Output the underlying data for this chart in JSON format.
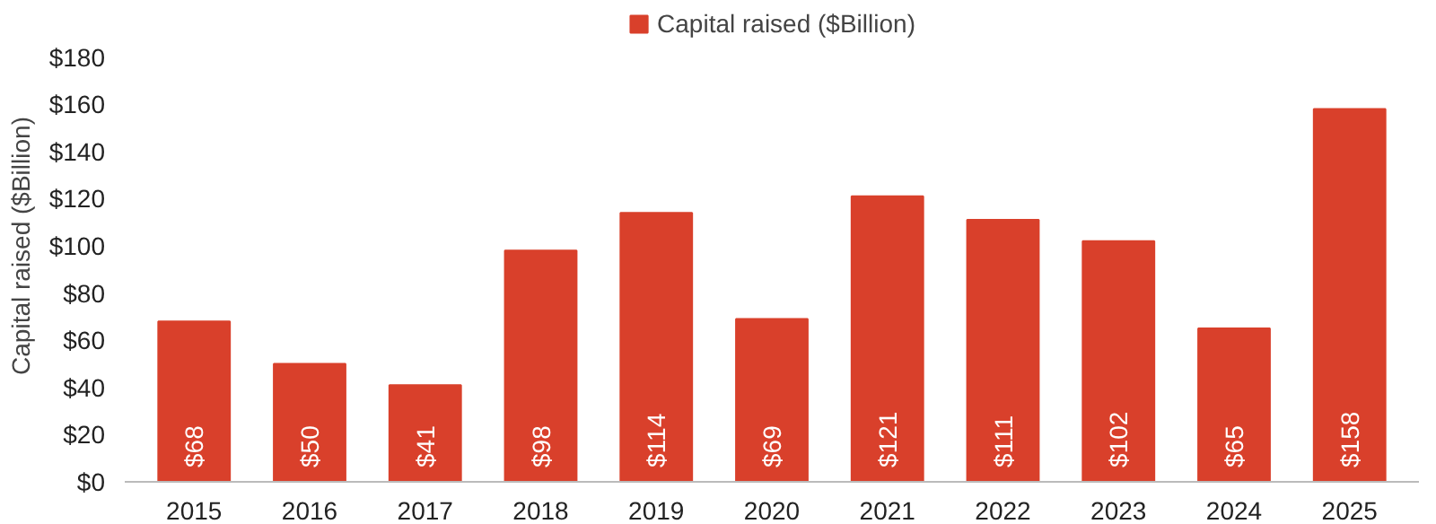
{
  "chart_data": {
    "type": "bar",
    "ylabel": "Capital raised ($Billion)",
    "categories": [
      "2015",
      "2016",
      "2017",
      "2018",
      "2019",
      "2020",
      "2021",
      "2022",
      "2023",
      "2024",
      "2025"
    ],
    "series": [
      {
        "name": "Capital raised ($Billion)",
        "color": "#d9402b",
        "values": [
          68,
          50,
          41,
          98,
          114,
          69,
          121,
          111,
          102,
          65,
          158
        ],
        "value_labels": [
          "$68",
          "$50",
          "$41",
          "$98",
          "$114",
          "$69",
          "$121",
          "$111",
          "$102",
          "$65",
          "$158"
        ]
      }
    ],
    "ylim": [
      0,
      200
    ],
    "yticks": [
      {
        "value": 0,
        "label": "$0"
      },
      {
        "value": 20,
        "label": "$20"
      },
      {
        "value": 40,
        "label": "$40"
      },
      {
        "value": 60,
        "label": "$60"
      },
      {
        "value": 80,
        "label": "$80"
      },
      {
        "value": 100,
        "label": "$100"
      },
      {
        "value": 120,
        "label": "$120"
      },
      {
        "value": 140,
        "label": "$140"
      },
      {
        "value": 160,
        "label": "$160"
      },
      {
        "value": 180,
        "label": "$180"
      }
    ],
    "grid": false,
    "legend": "top"
  }
}
